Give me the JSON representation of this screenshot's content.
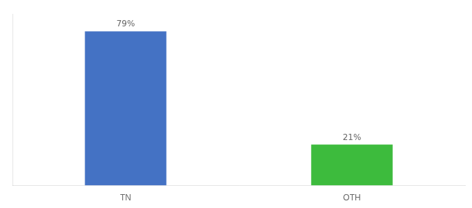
{
  "chart_data": {
    "type": "bar",
    "categories": [
      "TN",
      "OTH"
    ],
    "values": [
      79,
      21
    ],
    "value_labels": [
      "79%",
      "21%"
    ],
    "colors": [
      "#4472C4",
      "#3DBB3D"
    ],
    "ylim": [
      0,
      88
    ],
    "grid": false,
    "data_labels": true,
    "tick_labels": "x"
  }
}
